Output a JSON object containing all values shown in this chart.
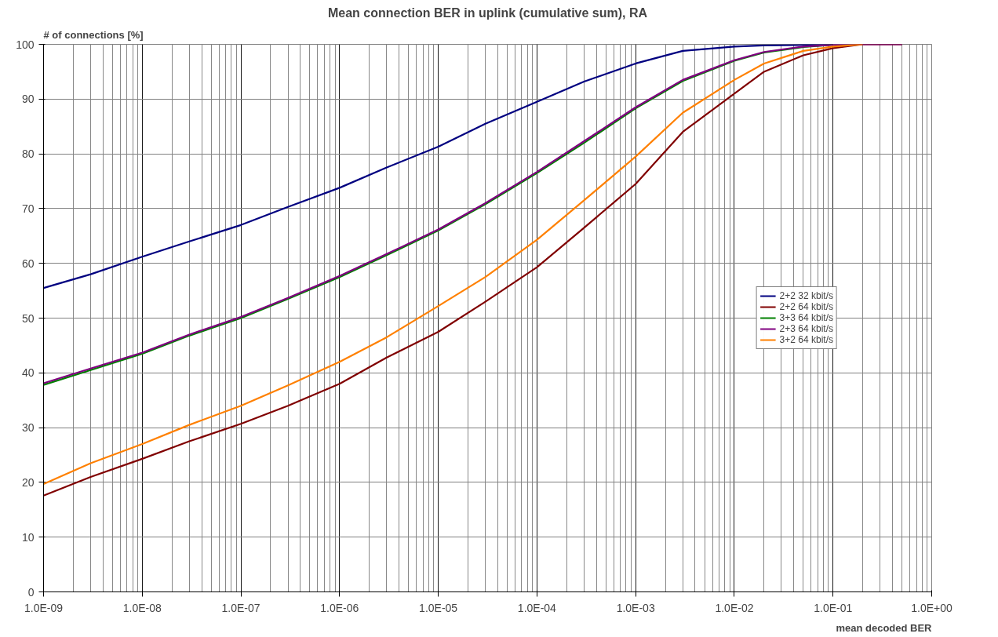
{
  "chart_data": {
    "type": "line",
    "title": "Mean connection BER in uplink (cumulative sum), RA",
    "xlabel": "mean decoded BER",
    "ylabel": "# of connections [%]",
    "log": "x",
    "grid": true,
    "legend": "right",
    "marker": "none",
    "line_style": "solid",
    "xlim": [
      1e-09,
      1
    ],
    "ylim": [
      0,
      100
    ],
    "xticks": [
      {
        "value": 1e-09,
        "label": "1.0E-09"
      },
      {
        "value": 1e-08,
        "label": "1.0E-08"
      },
      {
        "value": 1e-07,
        "label": "1.0E-07"
      },
      {
        "value": 1e-06,
        "label": "1.0E-06"
      },
      {
        "value": 1e-05,
        "label": "1.0E-05"
      },
      {
        "value": 0.0001,
        "label": "1.0E-04"
      },
      {
        "value": 0.001,
        "label": "1.0E-03"
      },
      {
        "value": 0.01,
        "label": "1.0E-02"
      },
      {
        "value": 0.1,
        "label": "1.0E-01"
      },
      {
        "value": 1,
        "label": "1.0E+00"
      }
    ],
    "yticks": [
      0,
      10,
      20,
      30,
      40,
      50,
      60,
      70,
      80,
      90,
      100
    ],
    "x": [
      1e-09,
      3e-09,
      1e-08,
      3e-08,
      1e-07,
      3e-07,
      1e-06,
      3e-06,
      1e-05,
      3e-05,
      0.0001,
      0.0003,
      0.001,
      0.003,
      0.01,
      0.02,
      0.05,
      0.1,
      0.2,
      0.5
    ],
    "series": [
      {
        "name": "2+2 32 kbit/s",
        "color": "#000080",
        "values": [
          55.5,
          58,
          61.2,
          64,
          67,
          70.3,
          73.8,
          77.5,
          81.3,
          85.5,
          89.5,
          93.2,
          96.5,
          98.8,
          99.6,
          99.8,
          99.9,
          100,
          null,
          null
        ]
      },
      {
        "name": "2+2 64 kbit/s",
        "color": "#800000",
        "values": [
          17.6,
          21,
          24.3,
          27.5,
          30.7,
          34,
          38,
          42.8,
          47.5,
          53,
          59.3,
          66.5,
          74.5,
          84,
          91,
          95,
          98,
          99.3,
          100,
          100
        ]
      },
      {
        "name": "3+3 64 kbit/s",
        "color": "#008000",
        "values": [
          37.8,
          40.5,
          43.5,
          46.8,
          50,
          53.5,
          57.5,
          61.5,
          66,
          70.8,
          76.5,
          82,
          88.3,
          93.3,
          97,
          98.5,
          99.5,
          99.9,
          null,
          null
        ]
      },
      {
        "name": "2+3 64 kbit/s",
        "color": "#800080",
        "values": [
          38.1,
          40.8,
          43.7,
          47,
          50.2,
          53.7,
          57.7,
          61.7,
          66.2,
          71,
          76.7,
          82.3,
          88.5,
          93.5,
          97.1,
          98.6,
          99.6,
          99.9,
          100,
          100
        ]
      },
      {
        "name": "3+2 64 kbit/s",
        "color": "#ff8000",
        "values": [
          19.7,
          23.5,
          27,
          30.5,
          34,
          37.7,
          42,
          46.5,
          52.2,
          57.5,
          64.3,
          71.5,
          79.5,
          87.5,
          93.5,
          96.5,
          98.8,
          99.6,
          100,
          null
        ]
      }
    ]
  }
}
